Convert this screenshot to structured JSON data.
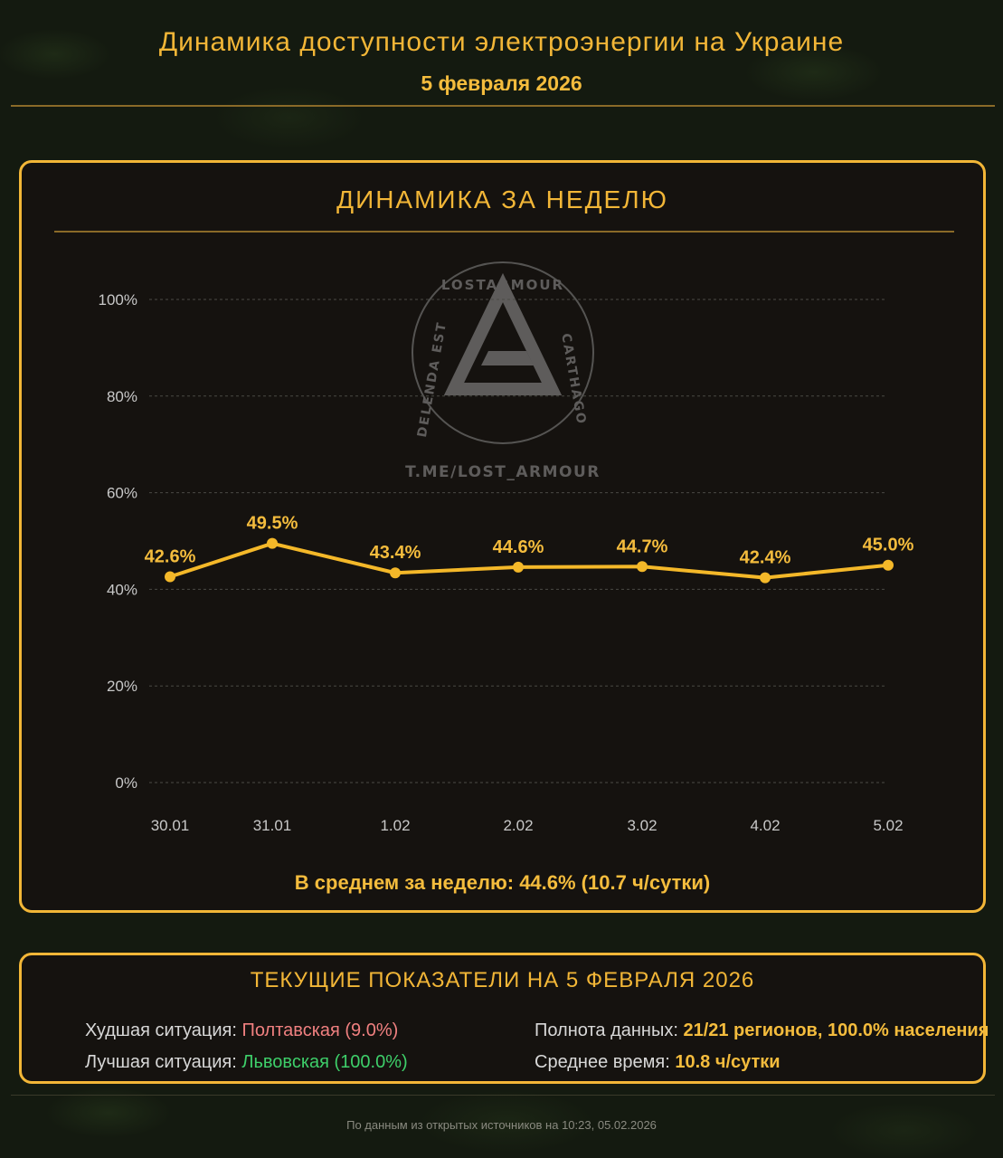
{
  "header": {
    "title": "Динамика доступности электроэнергии на Украине",
    "date": "5 февраля 2026"
  },
  "week_card": {
    "title": "ДИНАМИКА ЗА НЕДЕЛЮ",
    "average": "В среднем за неделю: 44.6% (10.7 ч/сутки)"
  },
  "watermark": {
    "ring_top": "LOSTARMOUR",
    "ring_right": "CARTHAGO",
    "ring_left": "DELENDA EST",
    "link": "T.ME/LOST_ARMOUR"
  },
  "chart_data": {
    "type": "line",
    "categories": [
      "30.01",
      "31.01",
      "1.02",
      "2.02",
      "3.02",
      "4.02",
      "5.02"
    ],
    "values": [
      42.6,
      49.5,
      43.4,
      44.6,
      44.7,
      42.4,
      45.0
    ],
    "data_labels": [
      "42.6%",
      "49.5%",
      "43.4%",
      "44.6%",
      "44.7%",
      "42.4%",
      "45.0%"
    ],
    "y_ticks": [
      0,
      20,
      40,
      60,
      80,
      100
    ],
    "y_tick_labels": [
      "0%",
      "20%",
      "40%",
      "60%",
      "80%",
      "100%"
    ],
    "ylim": [
      0,
      100
    ],
    "grid": true,
    "line_color": "#f4b829",
    "title": "",
    "xlabel": "",
    "ylabel": ""
  },
  "current_card": {
    "title": "ТЕКУЩИЕ ПОКАЗАТЕЛИ НА 5 ФЕВРАЛЯ 2026",
    "worst_label": "Худшая ситуация: ",
    "worst_value": "Полтавская (9.0%)",
    "best_label": "Лучшая ситуация: ",
    "best_value": "Львовская (100.0%)",
    "completeness_label": "Полнота данных: ",
    "completeness_value": "21/21 регионов, 100.0% населения",
    "avg_time_label": "Среднее время: ",
    "avg_time_value": "10.8 ч/сутки"
  },
  "footer": {
    "note": "По данным из открытых источников на 10:23, 05.02.2026"
  },
  "colors": {
    "accent": "#f2b637",
    "bad": "#f08080",
    "good": "#3ecf6a",
    "background": "#141a10",
    "card": "#161210"
  }
}
